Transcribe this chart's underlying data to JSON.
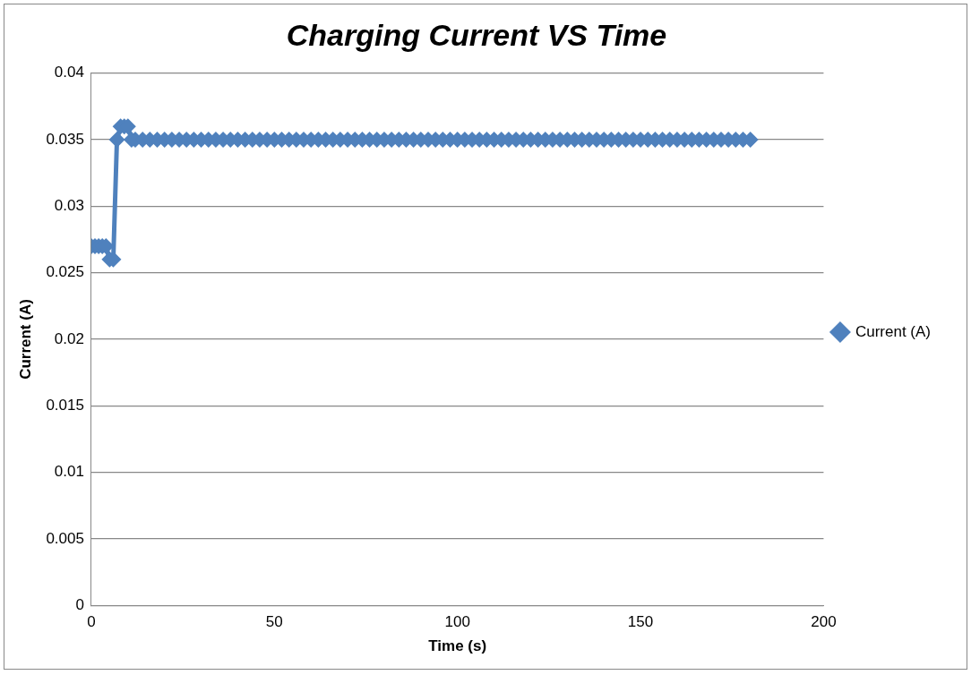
{
  "chart_data": {
    "type": "line",
    "title": "Charging Current VS Time",
    "xlabel": "Time (s)",
    "ylabel": "Current (A)",
    "xlim": [
      0,
      200
    ],
    "xticks": [
      0,
      50,
      100,
      150,
      200
    ],
    "ylim": [
      0,
      0.04
    ],
    "yticks": [
      0,
      0.005,
      0.01,
      0.015,
      0.02,
      0.025,
      0.03,
      0.035,
      0.04
    ],
    "grid": "y",
    "legend": "right",
    "marker": "diamond",
    "line_style": "solid",
    "series": [
      {
        "name": "Current (A)",
        "color": "#4f81bd",
        "x": [
          0,
          1,
          2,
          3,
          4,
          5,
          6,
          7,
          8,
          9,
          10,
          11,
          12,
          14,
          16,
          18,
          20,
          22,
          24,
          26,
          28,
          30,
          32,
          34,
          36,
          38,
          40,
          42,
          44,
          46,
          48,
          50,
          52,
          54,
          56,
          58,
          60,
          62,
          64,
          66,
          68,
          70,
          72,
          74,
          76,
          78,
          80,
          82,
          84,
          86,
          88,
          90,
          92,
          94,
          96,
          98,
          100,
          102,
          104,
          106,
          108,
          110,
          112,
          114,
          116,
          118,
          120,
          122,
          124,
          126,
          128,
          130,
          132,
          134,
          136,
          138,
          140,
          142,
          144,
          146,
          148,
          150,
          152,
          154,
          156,
          158,
          160,
          162,
          164,
          166,
          168,
          170,
          172,
          174,
          176,
          178,
          180
        ],
        "values": [
          0.027,
          0.027,
          0.027,
          0.027,
          0.027,
          0.026,
          0.026,
          0.035,
          0.036,
          0.036,
          0.036,
          0.035,
          0.035,
          0.035,
          0.035,
          0.035,
          0.035,
          0.035,
          0.035,
          0.035,
          0.035,
          0.035,
          0.035,
          0.035,
          0.035,
          0.035,
          0.035,
          0.035,
          0.035,
          0.035,
          0.035,
          0.035,
          0.035,
          0.035,
          0.035,
          0.035,
          0.035,
          0.035,
          0.035,
          0.035,
          0.035,
          0.035,
          0.035,
          0.035,
          0.035,
          0.035,
          0.035,
          0.035,
          0.035,
          0.035,
          0.035,
          0.035,
          0.035,
          0.035,
          0.035,
          0.035,
          0.035,
          0.035,
          0.035,
          0.035,
          0.035,
          0.035,
          0.035,
          0.035,
          0.035,
          0.035,
          0.035,
          0.035,
          0.035,
          0.035,
          0.035,
          0.035,
          0.035,
          0.035,
          0.035,
          0.035,
          0.035,
          0.035,
          0.035,
          0.035,
          0.035,
          0.035,
          0.035,
          0.035,
          0.035,
          0.035,
          0.035,
          0.035,
          0.035,
          0.035,
          0.035,
          0.035,
          0.035,
          0.035,
          0.035,
          0.035,
          0.035
        ]
      }
    ]
  }
}
